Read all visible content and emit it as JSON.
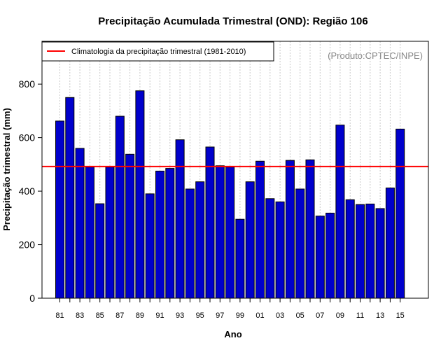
{
  "chart_data": {
    "type": "bar",
    "title": "Precipitação Acumulada Trimestral (OND): Região 106",
    "xlabel": "Ano",
    "ylabel": "Precipitação trimestral (mm)",
    "ylim": [
      0,
      960
    ],
    "yticks": [
      0,
      200,
      400,
      600,
      800
    ],
    "categories": [
      "81",
      "82",
      "83",
      "84",
      "85",
      "86",
      "87",
      "88",
      "89",
      "90",
      "91",
      "92",
      "93",
      "94",
      "95",
      "96",
      "97",
      "98",
      "99",
      "00",
      "01",
      "02",
      "03",
      "04",
      "05",
      "06",
      "07",
      "08",
      "09",
      "10",
      "11",
      "12",
      "13",
      "14",
      "15"
    ],
    "xtick_labels": [
      "81",
      "83",
      "85",
      "87",
      "89",
      "91",
      "93",
      "95",
      "97",
      "99",
      "01",
      "03",
      "05",
      "07",
      "09",
      "11",
      "13",
      "15"
    ],
    "values": [
      662,
      750,
      560,
      490,
      353,
      490,
      680,
      538,
      775,
      390,
      475,
      485,
      592,
      408,
      435,
      565,
      495,
      490,
      295,
      435,
      512,
      372,
      360,
      515,
      408,
      517,
      307,
      318,
      647,
      368,
      350,
      352,
      335,
      412,
      632
    ],
    "climatology": {
      "value": 492,
      "label": "Climatologia da precipitação trimestral (1981-2010)",
      "color": "#ff0000"
    },
    "bar_color": "#0000cc",
    "grid": "vertical-dashed",
    "legend_position": "top-left",
    "credit": "(Produto:CPTEC/INPE)"
  }
}
